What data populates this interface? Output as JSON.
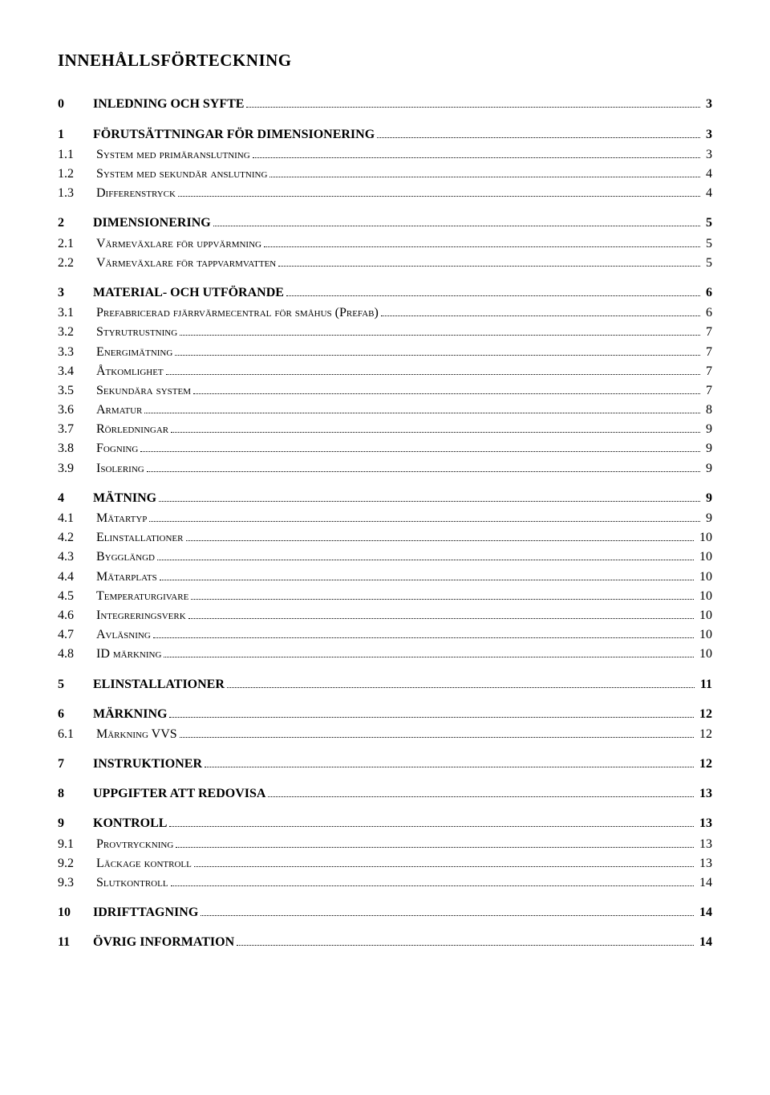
{
  "title": "INNEHÅLLSFÖRTECKNING",
  "toc": [
    {
      "level": 1,
      "num": "0",
      "label": "INLEDNING OCH SYFTE",
      "page": "3"
    },
    {
      "level": 1,
      "num": "1",
      "label": "FÖRUTSÄTTNINGAR FÖR DIMENSIONERING",
      "page": "3"
    },
    {
      "level": 2,
      "num": "1.1",
      "label": "System med primäranslutning",
      "page": "3",
      "sc": true
    },
    {
      "level": 2,
      "num": "1.2",
      "label": "System med sekundär anslutning",
      "page": "4",
      "sc": true
    },
    {
      "level": 2,
      "num": "1.3",
      "label": "Differenstryck",
      "page": "4",
      "sc": true
    },
    {
      "level": 1,
      "num": "2",
      "label": "DIMENSIONERING",
      "page": "5"
    },
    {
      "level": 2,
      "num": "2.1",
      "label": "Värmeväxlare för uppvärmning",
      "page": "5",
      "sc": true
    },
    {
      "level": 2,
      "num": "2.2",
      "label": "Värmeväxlare för tappvarmvatten",
      "page": "5",
      "sc": true
    },
    {
      "level": 1,
      "num": "3",
      "label": "MATERIAL- OCH UTFÖRANDE",
      "page": "6"
    },
    {
      "level": 2,
      "num": "3.1",
      "label": "Prefabricerad fjärrvärmecentral för småhus (Prefab)",
      "page": "6",
      "sc": true
    },
    {
      "level": 2,
      "num": "3.2",
      "label": "Styrutrustning",
      "page": "7",
      "sc": true
    },
    {
      "level": 2,
      "num": "3.3",
      "label": "Energimätning",
      "page": "7",
      "sc": true
    },
    {
      "level": 2,
      "num": "3.4",
      "label": "Åtkomlighet",
      "page": "7",
      "sc": true
    },
    {
      "level": 2,
      "num": "3.5",
      "label": "Sekundära system",
      "page": "7",
      "sc": true
    },
    {
      "level": 2,
      "num": "3.6",
      "label": "Armatur",
      "page": "8",
      "sc": true
    },
    {
      "level": 2,
      "num": "3.7",
      "label": "Rörledningar",
      "page": "9",
      "sc": true
    },
    {
      "level": 2,
      "num": "3.8",
      "label": "Fogning",
      "page": "9",
      "sc": true
    },
    {
      "level": 2,
      "num": "3.9",
      "label": "Isolering",
      "page": "9",
      "sc": true
    },
    {
      "level": 1,
      "num": "4",
      "label": "MÄTNING",
      "page": "9"
    },
    {
      "level": 2,
      "num": "4.1",
      "label": "Mätartyp",
      "page": "9",
      "sc": true
    },
    {
      "level": 2,
      "num": "4.2",
      "label": "Elinstallationer",
      "page": "10",
      "sc": true
    },
    {
      "level": 2,
      "num": "4.3",
      "label": "Bygglängd",
      "page": "10",
      "sc": true
    },
    {
      "level": 2,
      "num": "4.4",
      "label": "Mätarplats",
      "page": "10",
      "sc": true
    },
    {
      "level": 2,
      "num": "4.5",
      "label": "Temperaturgivare",
      "page": "10",
      "sc": true
    },
    {
      "level": 2,
      "num": "4.6",
      "label": "Integreringsverk",
      "page": "10",
      "sc": true
    },
    {
      "level": 2,
      "num": "4.7",
      "label": "Avläsning",
      "page": "10",
      "sc": true
    },
    {
      "level": 2,
      "num": "4.8",
      "label": "ID märkning",
      "page": "10",
      "sc": true
    },
    {
      "level": 1,
      "num": "5",
      "label": "ELINSTALLATIONER",
      "page": "11"
    },
    {
      "level": 1,
      "num": "6",
      "label": "MÄRKNING",
      "page": "12"
    },
    {
      "level": 2,
      "num": "6.1",
      "label": "Märkning VVS",
      "page": "12",
      "sc": true
    },
    {
      "level": 1,
      "num": "7",
      "label": "INSTRUKTIONER",
      "page": "12"
    },
    {
      "level": 1,
      "num": "8",
      "label": "UPPGIFTER ATT REDOVISA",
      "page": "13"
    },
    {
      "level": 1,
      "num": "9",
      "label": "KONTROLL",
      "page": "13"
    },
    {
      "level": 2,
      "num": "9.1",
      "label": "Provtryckning",
      "page": "13",
      "sc": true
    },
    {
      "level": 2,
      "num": "9.2",
      "label": "Läckage kontroll",
      "page": "13",
      "sc": true
    },
    {
      "level": 2,
      "num": "9.3",
      "label": "Slutkontroll",
      "page": "14",
      "sc": true
    },
    {
      "level": 1,
      "num": "10",
      "label": "IDRIFTTAGNING",
      "page": "14"
    },
    {
      "level": 1,
      "num": "11",
      "label": "ÖVRIG INFORMATION",
      "page": "14"
    }
  ]
}
